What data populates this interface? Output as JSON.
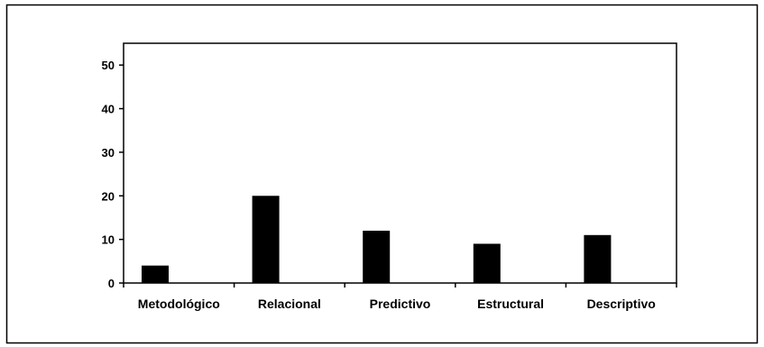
{
  "chart_data": {
    "type": "bar",
    "categories": [
      "Metodológico",
      "Relacional",
      "Predictivo",
      "Estructural",
      "Descriptivo"
    ],
    "values": [
      4,
      20,
      12,
      9,
      11
    ],
    "ylim": [
      0,
      55
    ],
    "yticks": [
      "0",
      "10",
      "20",
      "30",
      "40",
      "50"
    ],
    "grid": false,
    "legend": "none",
    "bar_color": "#000000"
  }
}
